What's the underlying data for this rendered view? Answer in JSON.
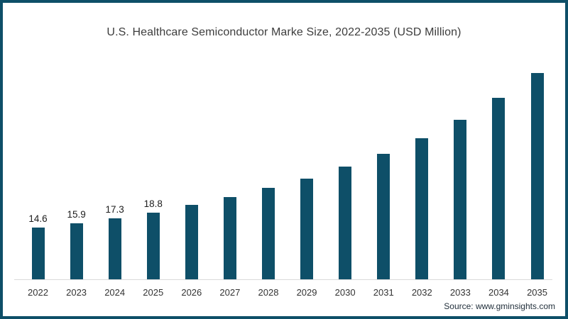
{
  "page": {
    "border_color": "#0e4f68",
    "background": "#ffffff"
  },
  "chart_data": {
    "type": "bar",
    "title": "U.S. Healthcare Semiconductor Marke Size, 2022-2035 (USD Million)",
    "categories": [
      "2022",
      "2023",
      "2024",
      "2025",
      "2026",
      "2027",
      "2028",
      "2029",
      "2030",
      "2031",
      "2032",
      "2033",
      "2034",
      "2035"
    ],
    "values": [
      14.6,
      15.9,
      17.3,
      18.8,
      21.0,
      23.2,
      25.8,
      28.5,
      31.8,
      35.4,
      39.8,
      45.0,
      51.2,
      58.2
    ],
    "data_labels": [
      "14.6",
      "15.9",
      "17.3",
      "18.8",
      "",
      "",
      "",
      "",
      "",
      "",
      "",
      "",
      "",
      ""
    ],
    "xlabel": "",
    "ylabel": "",
    "ylim": [
      0,
      78
    ],
    "grid": false,
    "legend": false,
    "bar_color": "#0e4f68",
    "axis_line_color": "#d9d9d9",
    "title_color": "#3d3d3d",
    "label_color": "#1c1c1c",
    "tick_color": "#333333"
  },
  "footer": {
    "source_label": "Source: www.gminsights.com"
  }
}
